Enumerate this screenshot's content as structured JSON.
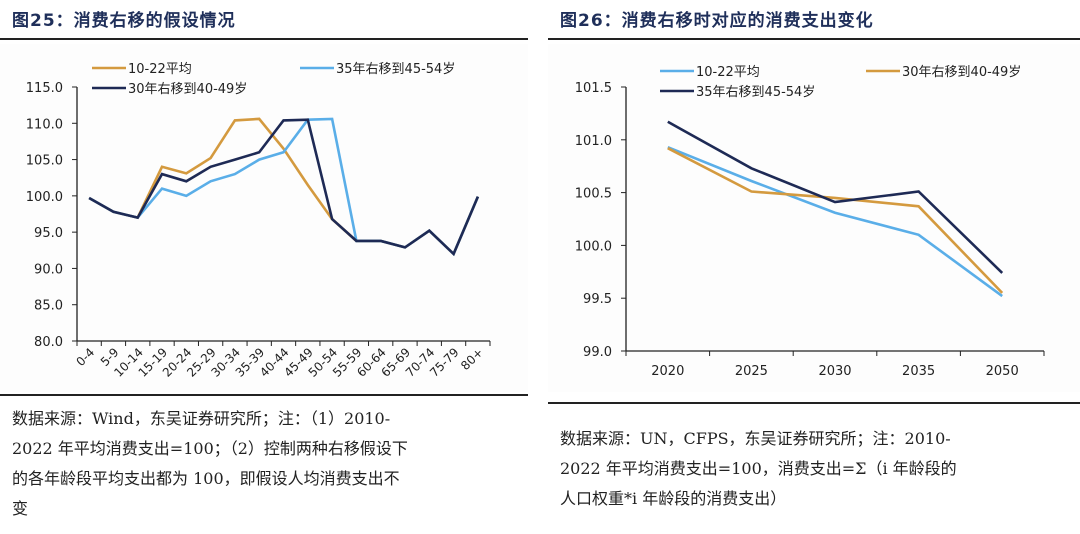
{
  "left": {
    "title": "图25：消费右移的假设情况",
    "note_lines": [
      "数据来源：Wind，东吴证券研究所；注：（1）2010-",
      "2022 年平均消费支出=100；（2）控制两种右移假设下",
      "的各年龄段平均支出都为 100，即假设人均消费支出不",
      "变"
    ]
  },
  "right": {
    "title": "图26：消费右移时对应的消费支出变化",
    "note_lines": [
      "数据来源：UN，CFPS，东吴证券研究所；注：2010-",
      "2022 年平均消费支出=100，消费支出=Σ（i 年龄段的",
      "人口权重*i 年龄段的消费支出）"
    ]
  },
  "colors": {
    "orange": "#d49a3f",
    "lightblue": "#5aaee8",
    "navy": "#1e2a55"
  },
  "chart_data": [
    {
      "type": "line",
      "title": "消费右移的假设情况",
      "xlabel": "",
      "ylabel": "",
      "categories": [
        "0-4",
        "5-9",
        "10-14",
        "15-19",
        "20-24",
        "25-29",
        "30-34",
        "35-39",
        "40-44",
        "45-49",
        "50-54",
        "55-59",
        "60-64",
        "65-69",
        "70-74",
        "75-79",
        "80+"
      ],
      "ylim": [
        80,
        115
      ],
      "yticks": [
        "80.0",
        "85.0",
        "90.0",
        "95.0",
        "100.0",
        "105.0",
        "110.0",
        "115.0"
      ],
      "ytick_values": [
        80,
        85,
        90,
        95,
        100,
        105,
        110,
        115
      ],
      "grid": false,
      "legend": "top",
      "series": [
        {
          "name": "10-22平均",
          "color": "#d49a3f",
          "values": [
            99.7,
            97.8,
            97.0,
            104.0,
            103.1,
            105.2,
            110.4,
            110.6,
            106.5,
            101.5,
            96.8,
            93.8,
            93.8,
            92.9,
            95.2,
            92.0,
            99.9
          ]
        },
        {
          "name": "35年右移到45-54岁",
          "color": "#5aaee8",
          "values": [
            99.7,
            97.8,
            97.0,
            101.0,
            100.0,
            102.0,
            103.0,
            105.0,
            106.0,
            110.5,
            110.6,
            93.8,
            93.8,
            92.9,
            95.2,
            92.0,
            99.9
          ]
        },
        {
          "name": "30年右移到40-49岁",
          "color": "#1e2a55",
          "values": [
            99.7,
            97.8,
            97.0,
            103.0,
            102.0,
            104.0,
            105.0,
            106.0,
            110.4,
            110.5,
            96.8,
            93.8,
            93.8,
            92.9,
            95.2,
            92.0,
            99.9
          ]
        }
      ]
    },
    {
      "type": "line",
      "title": "消费右移时对应的消费支出变化",
      "xlabel": "",
      "ylabel": "",
      "categories": [
        "2020",
        "2025",
        "2030",
        "2035",
        "2050"
      ],
      "ylim": [
        99.0,
        101.5
      ],
      "yticks": [
        "99.0",
        "99.5",
        "100.0",
        "100.5",
        "101.0",
        "101.5"
      ],
      "ytick_values": [
        99.0,
        99.5,
        100.0,
        100.5,
        101.0,
        101.5
      ],
      "grid": false,
      "legend": "top",
      "series": [
        {
          "name": "10-22平均",
          "color": "#5aaee8",
          "values": [
            100.93,
            100.61,
            100.31,
            100.1,
            99.52
          ]
        },
        {
          "name": "30年右移到40-49岁",
          "color": "#d49a3f",
          "values": [
            100.92,
            100.51,
            100.45,
            100.37,
            99.55
          ]
        },
        {
          "name": "35年右移到45-54岁",
          "color": "#1e2a55",
          "values": [
            101.17,
            100.73,
            100.41,
            100.51,
            99.74
          ]
        }
      ]
    }
  ]
}
